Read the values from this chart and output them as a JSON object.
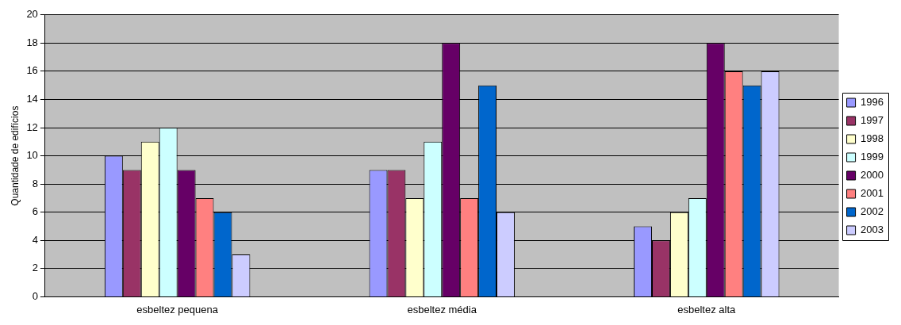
{
  "chart_data": {
    "type": "bar",
    "ylabel": "Quantidade de edifícios",
    "categories": [
      "esbeltez pequena",
      "esbeltez média",
      "esbeltez alta"
    ],
    "series": [
      {
        "name": "1996",
        "color": "#9999ff",
        "values": [
          10,
          9,
          5
        ]
      },
      {
        "name": "1997",
        "color": "#993366",
        "values": [
          9,
          9,
          4
        ]
      },
      {
        "name": "1998",
        "color": "#ffffcc",
        "values": [
          11,
          7,
          6
        ]
      },
      {
        "name": "1999",
        "color": "#ccffff",
        "values": [
          12,
          11,
          7
        ]
      },
      {
        "name": "2000",
        "color": "#660066",
        "values": [
          9,
          18,
          18
        ]
      },
      {
        "name": "2001",
        "color": "#ff8080",
        "values": [
          7,
          7,
          16
        ]
      },
      {
        "name": "2002",
        "color": "#0066cc",
        "values": [
          6,
          15,
          15
        ]
      },
      {
        "name": "2003",
        "color": "#ccccff",
        "values": [
          3,
          6,
          16
        ]
      }
    ],
    "ylim": [
      0,
      20
    ],
    "yticks": [
      0,
      2,
      4,
      6,
      8,
      10,
      12,
      14,
      16,
      18,
      20
    ],
    "grid": "y",
    "legend": "right"
  }
}
